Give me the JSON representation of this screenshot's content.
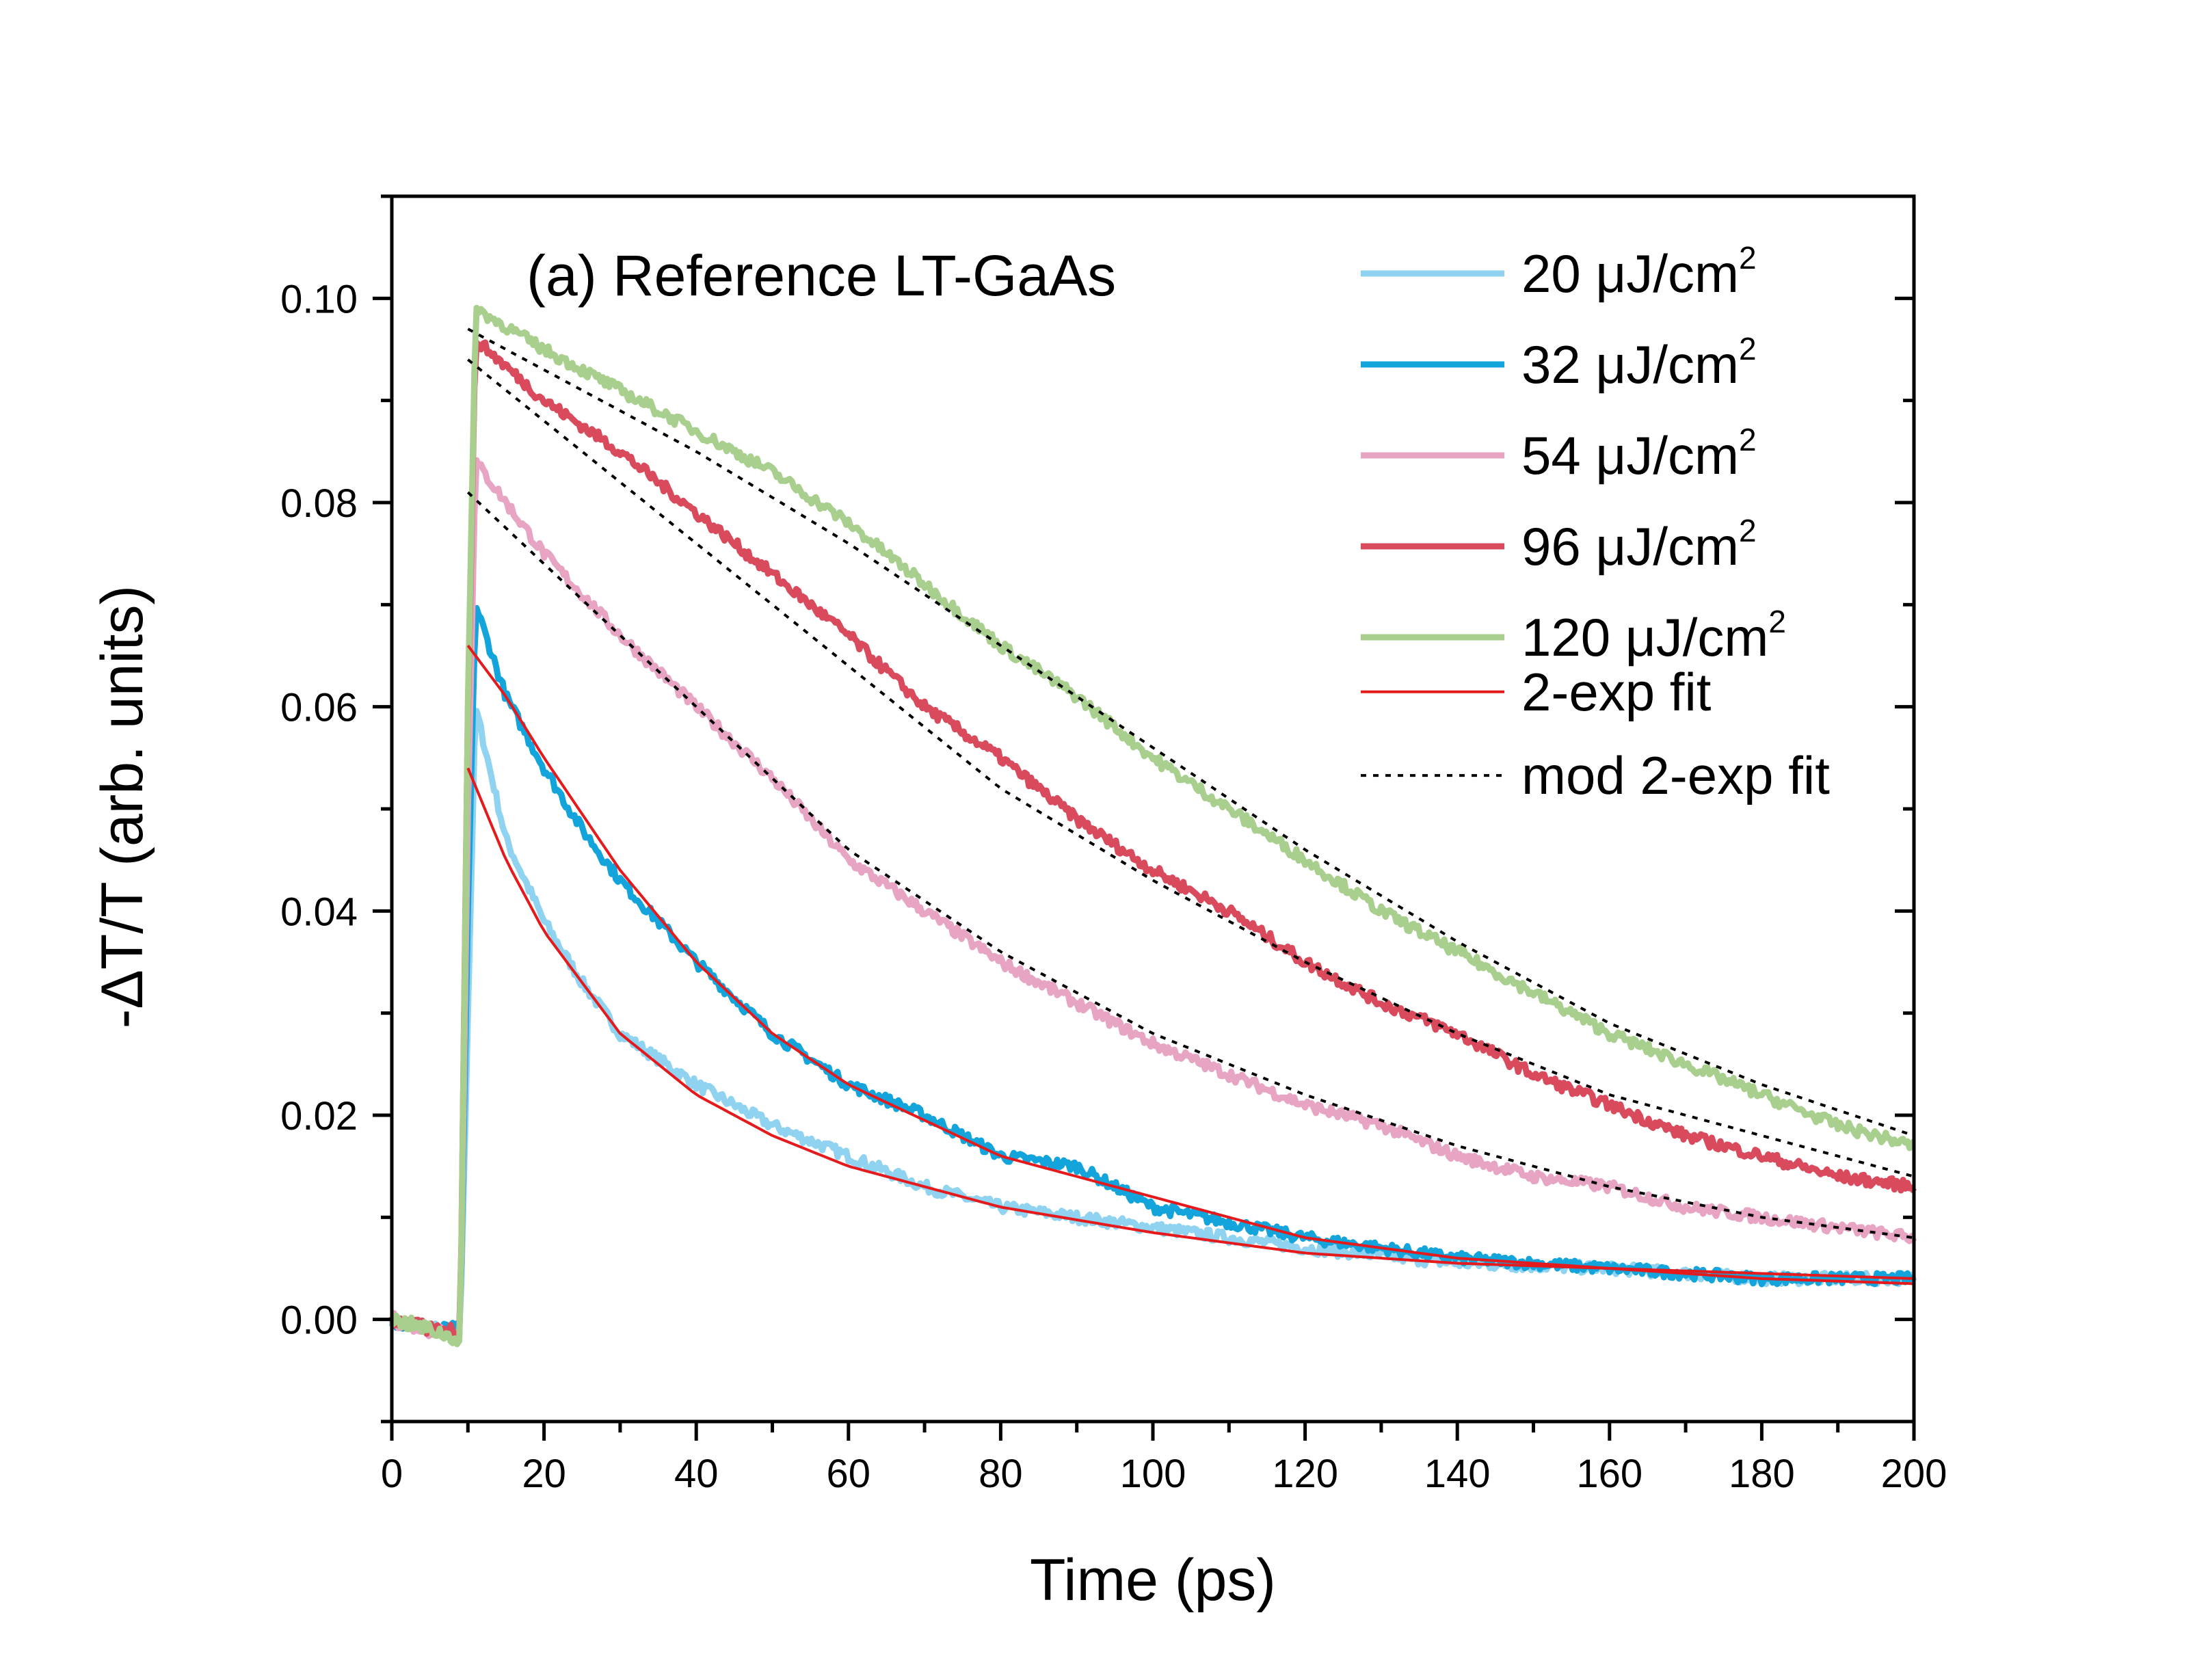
{
  "chart_data": {
    "type": "line",
    "title": "(a) Reference LT-GaAs",
    "xlabel": "Time (ps)",
    "ylabel": "-ΔT/T (arb. units)",
    "xlim": [
      0,
      200
    ],
    "ylim": [
      -0.01,
      0.11
    ],
    "x_ticks": [
      "0",
      "20",
      "40",
      "60",
      "80",
      "100",
      "120",
      "140",
      "160",
      "180",
      "200"
    ],
    "y_ticks": [
      "0.00",
      "0.02",
      "0.04",
      "0.06",
      "0.08",
      "0.10"
    ],
    "legend_position": "top-right",
    "series": [
      {
        "name": "20 μJ/cm",
        "sup": "2",
        "color": "#8fd3f0",
        "kind": "data",
        "x": [
          0,
          5,
          9,
          10,
          11,
          15,
          20,
          25,
          30,
          40,
          50,
          60,
          70,
          80,
          90,
          100,
          120,
          140,
          160,
          180,
          200
        ],
        "values": [
          0.0,
          -0.001,
          -0.001,
          0.03,
          0.06,
          0.047,
          0.039,
          0.033,
          0.028,
          0.023,
          0.019,
          0.016,
          0.013,
          0.011,
          0.01,
          0.009,
          0.007,
          0.0055,
          0.005,
          0.004,
          0.004
        ]
      },
      {
        "name": "32 μJ/cm",
        "sup": "2",
        "color": "#12a4db",
        "kind": "data",
        "x": [
          0,
          5,
          9,
          10,
          11,
          15,
          20,
          25,
          30,
          40,
          50,
          60,
          70,
          80,
          90,
          100,
          120,
          140,
          160,
          180,
          200
        ],
        "values": [
          0.0,
          -0.001,
          -0.001,
          0.04,
          0.07,
          0.061,
          0.054,
          0.048,
          0.043,
          0.035,
          0.028,
          0.023,
          0.02,
          0.016,
          0.015,
          0.011,
          0.008,
          0.006,
          0.005,
          0.004,
          0.004
        ]
      },
      {
        "name": "54 μJ/cm",
        "sup": "2",
        "color": "#e7a5c3",
        "kind": "data",
        "x": [
          0,
          5,
          9,
          10,
          11,
          20,
          30,
          40,
          50,
          60,
          70,
          80,
          90,
          100,
          110,
          120,
          130,
          140,
          150,
          160,
          170,
          180,
          190,
          200
        ],
        "values": [
          0.0,
          -0.001,
          -0.001,
          0.05,
          0.084,
          0.075,
          0.067,
          0.06,
          0.053,
          0.045,
          0.04,
          0.035,
          0.031,
          0.027,
          0.024,
          0.021,
          0.019,
          0.016,
          0.014,
          0.013,
          0.011,
          0.01,
          0.009,
          0.008
        ]
      },
      {
        "name": "96 μJ/cm",
        "sup": "2",
        "color": "#d94a5d",
        "kind": "data",
        "x": [
          0,
          5,
          9,
          10,
          11,
          20,
          30,
          40,
          50,
          60,
          70,
          80,
          90,
          100,
          110,
          120,
          130,
          140,
          150,
          160,
          170,
          180,
          190,
          200
        ],
        "values": [
          0.0,
          -0.001,
          -0.001,
          0.06,
          0.096,
          0.09,
          0.085,
          0.079,
          0.073,
          0.067,
          0.06,
          0.055,
          0.049,
          0.044,
          0.04,
          0.035,
          0.031,
          0.028,
          0.024,
          0.021,
          0.018,
          0.016,
          0.014,
          0.013
        ]
      },
      {
        "name": "120 μJ/cm",
        "sup": "2",
        "color": "#a9cf8f",
        "kind": "data",
        "x": [
          0,
          5,
          9,
          10,
          11,
          20,
          30,
          40,
          50,
          60,
          70,
          80,
          90,
          100,
          110,
          120,
          130,
          140,
          150,
          160,
          170,
          180,
          190,
          200
        ],
        "values": [
          0.0,
          -0.001,
          -0.002,
          0.06,
          0.099,
          0.095,
          0.091,
          0.087,
          0.083,
          0.078,
          0.072,
          0.066,
          0.061,
          0.055,
          0.05,
          0.045,
          0.04,
          0.036,
          0.032,
          0.028,
          0.025,
          0.022,
          0.019,
          0.017
        ]
      },
      {
        "name": "2-exp fit",
        "sup": "",
        "color": "#e41a1c",
        "kind": "fit",
        "x": [
          10,
          15,
          20,
          30,
          40,
          50,
          60,
          80,
          100,
          120,
          140,
          160,
          180,
          200
        ],
        "values": [
          0.054,
          0.045,
          0.038,
          0.028,
          0.022,
          0.018,
          0.015,
          0.011,
          0.0085,
          0.0065,
          0.0055,
          0.005,
          0.0045,
          0.004
        ]
      },
      {
        "name": "2-exp fit (32)",
        "sup": "",
        "color": "#e41a1c",
        "kind": "fit-nolegend",
        "x": [
          10,
          15,
          20,
          30,
          40,
          50,
          60,
          80,
          100,
          120,
          140,
          160,
          180,
          200
        ],
        "values": [
          0.066,
          0.061,
          0.055,
          0.044,
          0.035,
          0.028,
          0.023,
          0.016,
          0.012,
          0.008,
          0.006,
          0.005,
          0.004,
          0.0035
        ]
      },
      {
        "name": "mod 2-exp fit",
        "sup": "",
        "color": "#000000",
        "kind": "modfit",
        "x": [
          10,
          20,
          30,
          40,
          60,
          80,
          100,
          120,
          140,
          160,
          180,
          200
        ],
        "values": [
          0.081,
          0.074,
          0.067,
          0.06,
          0.046,
          0.036,
          0.028,
          0.022,
          0.017,
          0.013,
          0.01,
          0.008
        ]
      },
      {
        "name": "mod 2-exp fit (96)",
        "sup": "",
        "color": "#000000",
        "kind": "modfit-nolegend",
        "x": [
          10,
          20,
          30,
          40,
          60,
          80,
          100,
          120,
          140,
          160,
          180,
          200
        ],
        "values": [
          0.094,
          0.088,
          0.082,
          0.076,
          0.064,
          0.052,
          0.043,
          0.035,
          0.028,
          0.022,
          0.018,
          0.014
        ]
      },
      {
        "name": "mod 2-exp fit (120)",
        "sup": "",
        "color": "#000000",
        "kind": "modfit-nolegend",
        "x": [
          10,
          20,
          30,
          40,
          60,
          80,
          100,
          120,
          140,
          160,
          180,
          200
        ],
        "values": [
          0.097,
          0.093,
          0.089,
          0.085,
          0.076,
          0.066,
          0.056,
          0.046,
          0.037,
          0.029,
          0.023,
          0.018
        ]
      }
    ]
  }
}
